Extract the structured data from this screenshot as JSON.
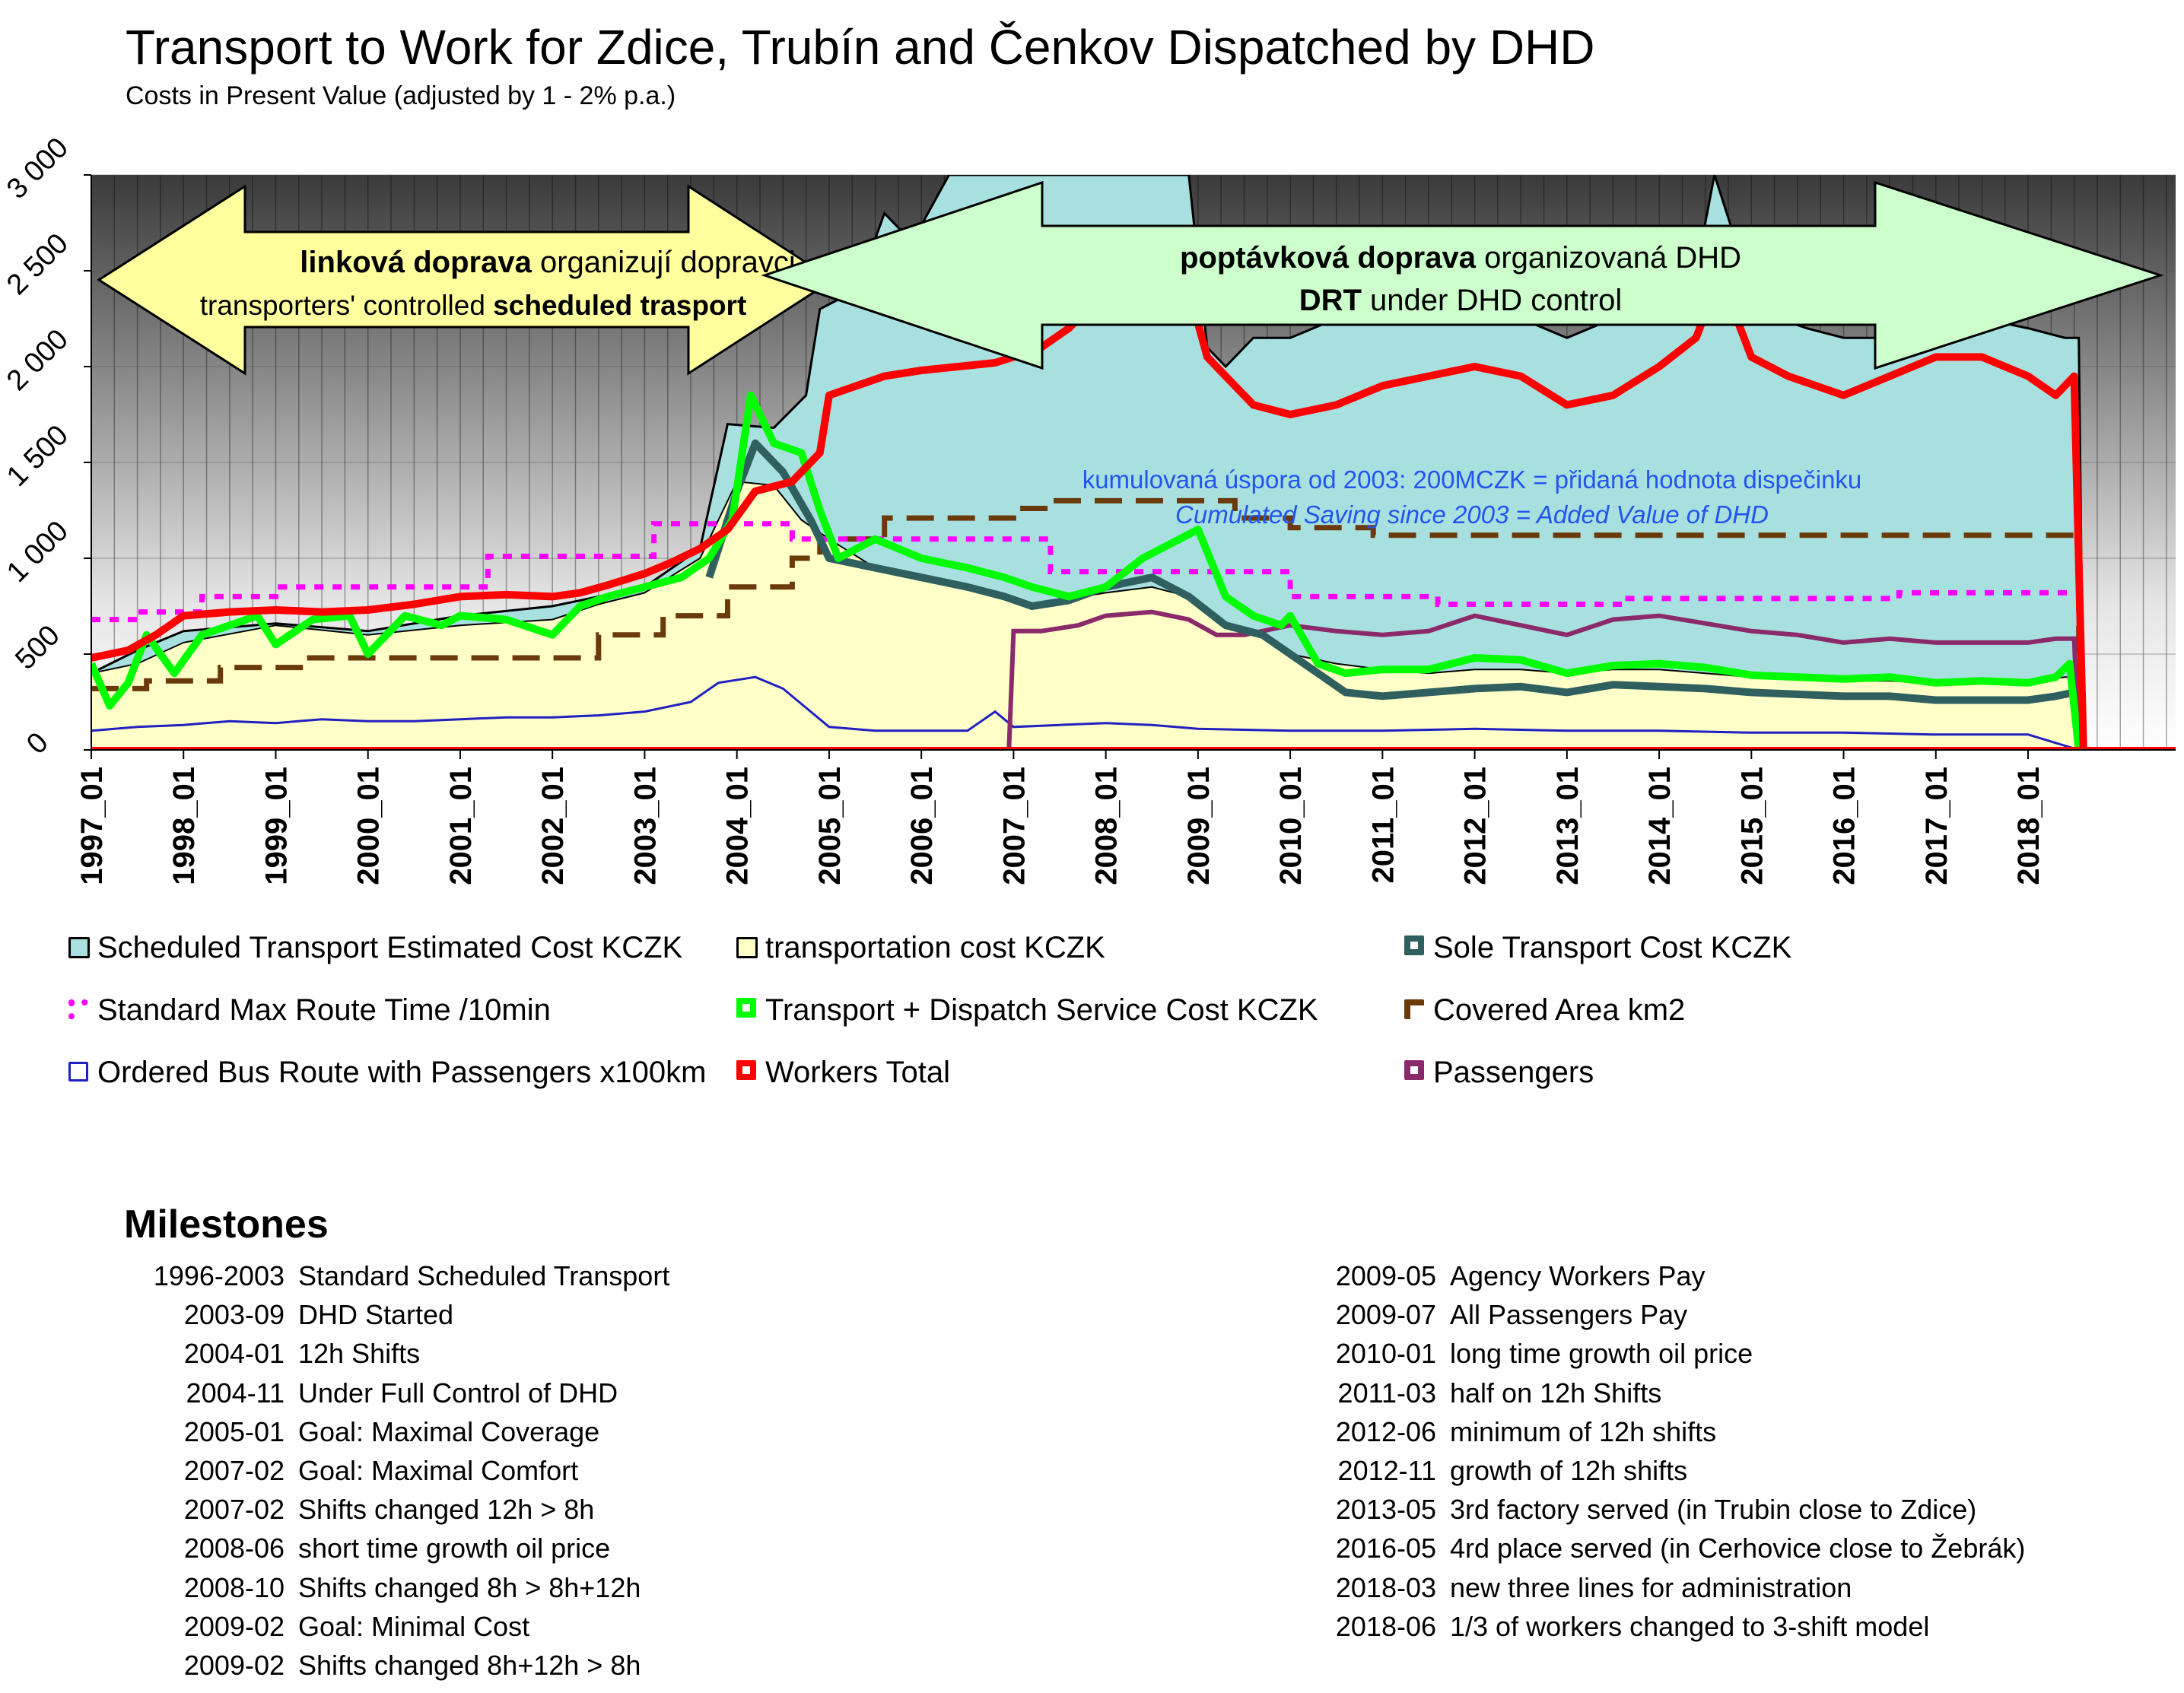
{
  "title": "Transport to Work for Zdice, Trubín and Čenkov Dispatched by DHD",
  "subtitle": "Costs in Present Value (adjusted by 1 - 2% p.a.)",
  "arrows": {
    "left_bold": "linková doprava",
    "left_rest": " organizují dopravci",
    "left_line2_a": "transporters' controlled ",
    "left_line2_bold": "scheduled trasport",
    "right_bold": "poptávková doprava",
    "right_rest": " organizovaná DHD",
    "right_line2_bold": "DRT",
    "right_line2_rest": " under DHD control"
  },
  "annotation": {
    "line1": "kumulovaná úspora od 2003: 200MCZK = přidaná hodnota dispečinku",
    "line2": "Cumulated Saving since 2003 = Added Value of DHD"
  },
  "colors": {
    "scheduled": "#a8e0e0",
    "transportation": "#ffffc8",
    "sole": "#2f5f5f",
    "max_route": "#ff00ff",
    "transport_dispatch": "#00ff00",
    "covered_area": "#6b3a0a",
    "bus_route": "#2020c0",
    "workers": "#ff0000",
    "passengers": "#8b2a6a",
    "annotation": "#2255ee"
  },
  "chart_data": {
    "type": "area",
    "ylim": [
      0,
      3000
    ],
    "y_ticks": [
      "0",
      "500",
      "1 000",
      "1 500",
      "2 000",
      "2 500",
      "3 000"
    ],
    "x_tick_labels": [
      "1997_01",
      "1998_01",
      "1999_01",
      "2000_01",
      "2001_01",
      "2002_01",
      "2003_01",
      "2004_01",
      "2005_01",
      "2006_01",
      "2007_01",
      "2008_01",
      "2009_01",
      "2010_01",
      "2011_01",
      "2012_01",
      "2013_01",
      "2014_01",
      "2015_01",
      "2016_01",
      "2017_01",
      "2018_01"
    ],
    "x_range": [
      1997.0,
      2019.6
    ],
    "series": [
      {
        "name": "Scheduled Transport Estimated Cost KCZK",
        "style": "area",
        "x": [
          1997.0,
          1997.5,
          1998.0,
          1999.0,
          2000.0,
          2001.0,
          2002.0,
          2003.0,
          2003.6,
          2003.9,
          2004.4,
          2004.75,
          2004.9,
          2005.3,
          2005.6,
          2005.9,
          2006.3,
          2006.8,
          2007.1,
          2007.3,
          2007.6,
          2008.0,
          2008.5,
          2008.9,
          2009.1,
          2009.3,
          2009.6,
          2010.0,
          2010.5,
          2011.0,
          2011.5,
          2012.0,
          2012.5,
          2013.0,
          2013.5,
          2014.0,
          2014.4,
          2014.6,
          2014.8,
          2015.0,
          2015.3,
          2015.6,
          2016.0,
          2016.5,
          2017.0,
          2017.5,
          2018.0,
          2018.4,
          2018.55,
          2018.6,
          2019.6
        ],
        "values": [
          400,
          520,
          620,
          660,
          620,
          700,
          750,
          850,
          1050,
          1700,
          1680,
          1850,
          2300,
          2400,
          2800,
          2650,
          3000,
          3000,
          3000,
          3000,
          3000,
          3000,
          3000,
          3000,
          2100,
          2000,
          2150,
          2150,
          2250,
          2300,
          2350,
          2350,
          2250,
          2150,
          2250,
          2350,
          2500,
          3000,
          2700,
          2300,
          2250,
          2200,
          2150,
          2150,
          2300,
          2250,
          2200,
          2150,
          2150,
          0,
          0
        ]
      },
      {
        "name": "transportation cost KCZK",
        "style": "area",
        "x": [
          1997.0,
          1997.5,
          1998.0,
          1999.0,
          2000.0,
          2001.0,
          2002.0,
          2002.5,
          2003.0,
          2003.6,
          2004.0,
          2004.4,
          2004.7,
          2005.0,
          2005.5,
          2006.0,
          2006.5,
          2006.9,
          2007.1,
          2007.5,
          2008.0,
          2008.5,
          2008.9,
          2009.3,
          2009.7,
          2010.0,
          2010.5,
          2011.0,
          2011.5,
          2012.0,
          2012.5,
          2013.0,
          2013.5,
          2014.0,
          2014.5,
          2015.0,
          2015.5,
          2016.0,
          2016.5,
          2017.0,
          2017.5,
          2018.0,
          2018.4,
          2018.55,
          2018.6,
          2019.6
        ],
        "values": [
          400,
          450,
          560,
          650,
          600,
          650,
          680,
          760,
          820,
          1000,
          1400,
          1380,
          1200,
          1100,
          950,
          900,
          850,
          800,
          750,
          780,
          820,
          850,
          800,
          650,
          600,
          500,
          450,
          420,
          400,
          420,
          420,
          400,
          420,
          420,
          400,
          380,
          380,
          360,
          360,
          350,
          360,
          360,
          380,
          380,
          0,
          0
        ]
      },
      {
        "name": "Sole Transport Cost KCZK",
        "style": "line",
        "x": [
          2003.7,
          2004.0,
          2004.2,
          2004.5,
          2004.8,
          2005.0,
          2005.5,
          2006.0,
          2006.5,
          2006.9,
          2007.2,
          2007.6,
          2008.0,
          2008.5,
          2008.9,
          2009.3,
          2009.7,
          2010.0,
          2010.3,
          2010.6,
          2011.0,
          2011.5,
          2012.0,
          2012.5,
          2013.0,
          2013.5,
          2014.0,
          2014.5,
          2015.0,
          2015.5,
          2016.0,
          2016.5,
          2017.0,
          2017.5,
          2018.0,
          2018.3,
          2018.5,
          2018.55
        ],
        "values": [
          900,
          1350,
          1600,
          1450,
          1200,
          1000,
          950,
          900,
          850,
          800,
          750,
          780,
          850,
          900,
          800,
          650,
          600,
          500,
          400,
          300,
          280,
          300,
          320,
          330,
          300,
          340,
          330,
          320,
          300,
          290,
          280,
          280,
          260,
          260,
          260,
          280,
          300,
          0
        ]
      },
      {
        "name": "Standard Max Route Time /10min",
        "style": "dotted",
        "x": [
          1997.0,
          1997.5,
          1997.5,
          1998.2,
          1998.2,
          1999.0,
          1999.0,
          2001.3,
          2001.3,
          2003.1,
          2003.1,
          2004.6,
          2004.6,
          2007.4,
          2007.4,
          2010.0,
          2010.0,
          2011.6,
          2011.6,
          2013.6,
          2013.6,
          2016.6,
          2016.6,
          2018.55
        ],
        "values": [
          680,
          680,
          720,
          720,
          800,
          800,
          850,
          850,
          1010,
          1010,
          1180,
          1180,
          1100,
          1100,
          930,
          930,
          800,
          800,
          760,
          760,
          790,
          790,
          820,
          820
        ]
      },
      {
        "name": "Transport + Dispatch Service Cost KCZK",
        "style": "line",
        "x": [
          1997.0,
          1997.2,
          1997.4,
          1997.6,
          1997.9,
          1998.2,
          1998.5,
          1998.8,
          1999.0,
          1999.4,
          1999.8,
          2000.0,
          2000.4,
          2000.8,
          2001.0,
          2001.5,
          2002.0,
          2002.3,
          2002.6,
          2003.0,
          2003.4,
          2003.7,
          2003.95,
          2004.15,
          2004.4,
          2004.7,
          2004.9,
          2005.1,
          2005.5,
          2006.0,
          2006.5,
          2006.9,
          2007.2,
          2007.6,
          2008.0,
          2008.4,
          2008.8,
          2009.0,
          2009.3,
          2009.6,
          2009.9,
          2010.0,
          2010.3,
          2010.6,
          2011.0,
          2011.5,
          2012.0,
          2012.5,
          2013.0,
          2013.5,
          2014.0,
          2014.5,
          2015.0,
          2015.5,
          2016.0,
          2016.5,
          2017.0,
          2017.5,
          2018.0,
          2018.3,
          2018.45,
          2018.55
        ],
        "values": [
          450,
          230,
          350,
          600,
          400,
          600,
          650,
          700,
          550,
          680,
          700,
          500,
          700,
          650,
          700,
          680,
          600,
          750,
          800,
          850,
          900,
          1000,
          1200,
          1850,
          1600,
          1550,
          1250,
          1000,
          1100,
          1000,
          950,
          900,
          850,
          800,
          850,
          1000,
          1100,
          1150,
          800,
          700,
          650,
          700,
          450,
          400,
          420,
          420,
          480,
          470,
          400,
          440,
          450,
          430,
          390,
          380,
          370,
          380,
          350,
          360,
          350,
          380,
          450,
          0
        ]
      },
      {
        "name": "Covered Area km2",
        "style": "dashed",
        "x": [
          1997.0,
          1997.6,
          1997.6,
          1998.4,
          1998.4,
          1999.3,
          1999.3,
          2002.5,
          2002.5,
          2003.2,
          2003.2,
          2003.9,
          2003.9,
          2004.6,
          2004.6,
          2004.9,
          2004.9,
          2005.6,
          2005.6,
          2007.0,
          2007.0,
          2007.4,
          2007.4,
          2009.4,
          2009.4,
          2010.0,
          2010.0,
          2010.9,
          2010.9,
          2018.55,
          2018.55
        ],
        "values": [
          320,
          320,
          360,
          360,
          430,
          430,
          480,
          480,
          600,
          600,
          700,
          700,
          850,
          850,
          1000,
          1000,
          1100,
          1100,
          1210,
          1210,
          1260,
          1260,
          1300,
          1300,
          1210,
          1210,
          1160,
          1160,
          1120,
          1120,
          0
        ]
      },
      {
        "name": "Ordered Bus Route with Passengers x100km",
        "style": "thin",
        "x": [
          1997.0,
          1997.5,
          1998.0,
          1998.5,
          1999.0,
          1999.5,
          2000.0,
          2000.5,
          2001.0,
          2001.5,
          2002.0,
          2002.5,
          2003.0,
          2003.5,
          2003.8,
          2004.2,
          2004.5,
          2004.8,
          2005.0,
          2005.5,
          2006.0,
          2006.5,
          2006.8,
          2007.0,
          2007.5,
          2008.0,
          2008.5,
          2009.0,
          2010.0,
          2011.0,
          2012.0,
          2013.0,
          2014.0,
          2015.0,
          2016.0,
          2017.0,
          2018.0,
          2018.55
        ],
        "values": [
          100,
          120,
          130,
          150,
          140,
          160,
          150,
          150,
          160,
          170,
          170,
          180,
          200,
          250,
          350,
          380,
          320,
          200,
          120,
          100,
          100,
          100,
          200,
          120,
          130,
          140,
          130,
          110,
          100,
          100,
          110,
          100,
          100,
          90,
          90,
          80,
          80,
          0
        ]
      },
      {
        "name": "Workers Total",
        "style": "thick",
        "x": [
          1997.0,
          1997.4,
          1997.7,
          1998.0,
          1998.5,
          1999.0,
          1999.5,
          2000.0,
          2000.5,
          2001.0,
          2001.5,
          2002.0,
          2002.3,
          2002.6,
          2003.0,
          2003.3,
          2003.6,
          2003.9,
          2004.2,
          2004.6,
          2004.9,
          2005.0,
          2005.3,
          2005.6,
          2006.0,
          2006.4,
          2006.8,
          2007.0,
          2007.3,
          2007.6,
          2008.0,
          2008.4,
          2008.7,
          2008.9,
          2009.1,
          2009.3,
          2009.6,
          2010.0,
          2010.5,
          2011.0,
          2011.5,
          2012.0,
          2012.5,
          2013.0,
          2013.5,
          2014.0,
          2014.4,
          2014.6,
          2014.8,
          2015.0,
          2015.4,
          2015.7,
          2016.0,
          2016.5,
          2017.0,
          2017.5,
          2018.0,
          2018.3,
          2018.5,
          2018.6
        ],
        "values": [
          480,
          520,
          600,
          700,
          720,
          730,
          720,
          730,
          760,
          800,
          810,
          800,
          820,
          860,
          920,
          980,
          1050,
          1150,
          1350,
          1400,
          1550,
          1850,
          1900,
          1950,
          1980,
          2000,
          2020,
          2050,
          2100,
          2200,
          2400,
          2700,
          2600,
          2400,
          2050,
          1950,
          1800,
          1750,
          1800,
          1900,
          1950,
          2000,
          1950,
          1800,
          1850,
          2000,
          2150,
          2400,
          2300,
          2050,
          1950,
          1900,
          1850,
          1950,
          2050,
          2050,
          1950,
          1850,
          1950,
          0
        ]
      },
      {
        "name": "Passengers",
        "style": "line",
        "x": [
          2006.95,
          2007.0,
          2007.3,
          2007.7,
          2008.0,
          2008.5,
          2008.9,
          2009.2,
          2009.5,
          2010.0,
          2010.5,
          2011.0,
          2011.5,
          2012.0,
          2012.5,
          2013.0,
          2013.5,
          2014.0,
          2014.5,
          2015.0,
          2015.5,
          2016.0,
          2016.5,
          2017.0,
          2017.5,
          2018.0,
          2018.3,
          2018.5,
          2018.55
        ],
        "values": [
          0,
          620,
          620,
          650,
          700,
          720,
          680,
          600,
          600,
          650,
          620,
          600,
          620,
          700,
          650,
          600,
          680,
          700,
          660,
          620,
          600,
          560,
          580,
          560,
          560,
          560,
          580,
          580,
          0
        ]
      }
    ]
  },
  "milestones": {
    "title": "Milestones",
    "left": [
      {
        "date": "1996-2003",
        "text": "Standard Scheduled Transport"
      },
      {
        "date": "2003-09",
        "text": "DHD Started"
      },
      {
        "date": "2004-01",
        "text": "12h Shifts"
      },
      {
        "date": "2004-11",
        "text": "Under Full Control of DHD"
      },
      {
        "date": "2005-01",
        "text": "Goal: Maximal Coverage"
      },
      {
        "date": "2007-02",
        "text": "Goal: Maximal Comfort"
      },
      {
        "date": "2007-02",
        "text": "Shifts changed 12h > 8h"
      },
      {
        "date": "2008-06",
        "text": "short time growth oil price"
      },
      {
        "date": "2008-10",
        "text": "Shifts changed 8h > 8h+12h"
      },
      {
        "date": "2009-02",
        "text": "Goal: Minimal Cost"
      },
      {
        "date": "2009-02",
        "text": "Shifts changed 8h+12h > 8h"
      }
    ],
    "right": [
      {
        "date": "2009-05",
        "text": "Agency Workers Pay"
      },
      {
        "date": "2009-07",
        "text": "All Passengers Pay"
      },
      {
        "date": "2010-01",
        "text": "long time growth oil price"
      },
      {
        "date": "2011-03",
        "text": "half on 12h Shifts"
      },
      {
        "date": "2012-06",
        "text": "minimum of 12h shifts"
      },
      {
        "date": "2012-11",
        "text": "growth of 12h shifts"
      },
      {
        "date": "2013-05",
        "text": "3rd factory served (in Trubin close to Zdice)"
      },
      {
        "date": "2016-05",
        "text": "4rd place served (in Cerhovice close to Žebrák)"
      },
      {
        "date": "2018-03",
        "text": "new three lines for administration"
      },
      {
        "date": "2018-06",
        "text": "1/3 of workers changed to 3-shift model"
      }
    ]
  }
}
